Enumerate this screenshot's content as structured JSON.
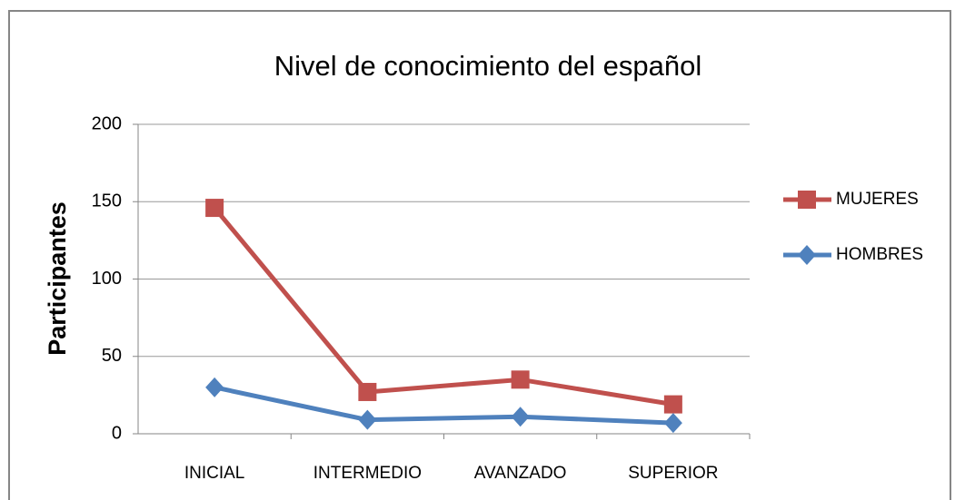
{
  "chart_data": {
    "type": "line",
    "title": "Nivel de conocimiento del español",
    "y_label": "Participantes",
    "categories": [
      "INICIAL",
      "INTERMEDIO",
      "AVANZADO",
      "SUPERIOR"
    ],
    "series": [
      {
        "name": "MUJERES",
        "color": "#c0504d",
        "marker": "square",
        "values": [
          146,
          27,
          35,
          19
        ]
      },
      {
        "name": "HOMBRES",
        "color": "#4f81bd",
        "marker": "diamond",
        "values": [
          30,
          9,
          11,
          7
        ]
      }
    ],
    "ylim": [
      0,
      200
    ],
    "yticks": [
      0,
      50,
      100,
      150,
      200
    ],
    "grid": true,
    "legend": "right"
  }
}
